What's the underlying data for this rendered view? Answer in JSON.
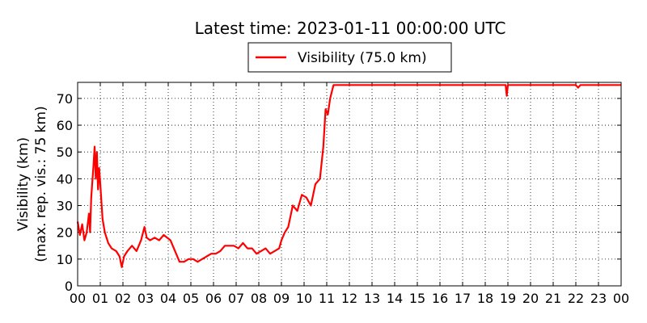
{
  "chart_data": {
    "type": "line",
    "title": "Latest time: 2023-01-11 00:00:00 UTC",
    "ylabel_line1": "Visibility (km)",
    "ylabel_line2": "(max. rep. vis.: 75 km)",
    "xlabel": "",
    "ylim": [
      0,
      76
    ],
    "xlim": [
      0,
      24
    ],
    "yticks": [
      0,
      10,
      20,
      30,
      40,
      50,
      60,
      70
    ],
    "xtick_labels": [
      "00",
      "01",
      "02",
      "03",
      "04",
      "05",
      "06",
      "07",
      "08",
      "09",
      "10",
      "11",
      "12",
      "13",
      "14",
      "15",
      "16",
      "17",
      "18",
      "19",
      "20",
      "21",
      "22",
      "23",
      "00"
    ],
    "grid": true,
    "legend_position": "top-center",
    "series": [
      {
        "name": "Visibility (75.0 km)",
        "color": "#ff0000",
        "points": [
          [
            0.0,
            24
          ],
          [
            0.1,
            19
          ],
          [
            0.2,
            23
          ],
          [
            0.3,
            17
          ],
          [
            0.4,
            20
          ],
          [
            0.5,
            27
          ],
          [
            0.55,
            20
          ],
          [
            0.6,
            33
          ],
          [
            0.7,
            45
          ],
          [
            0.75,
            52
          ],
          [
            0.8,
            40
          ],
          [
            0.85,
            50
          ],
          [
            0.9,
            36
          ],
          [
            0.95,
            44
          ],
          [
            1.0,
            38
          ],
          [
            1.1,
            25
          ],
          [
            1.2,
            20
          ],
          [
            1.35,
            16
          ],
          [
            1.5,
            14
          ],
          [
            1.7,
            13
          ],
          [
            1.85,
            11
          ],
          [
            1.95,
            7
          ],
          [
            2.05,
            11
          ],
          [
            2.2,
            13
          ],
          [
            2.4,
            15
          ],
          [
            2.6,
            13
          ],
          [
            2.8,
            17
          ],
          [
            2.95,
            22
          ],
          [
            3.05,
            18
          ],
          [
            3.2,
            17
          ],
          [
            3.4,
            18
          ],
          [
            3.6,
            17
          ],
          [
            3.8,
            19
          ],
          [
            3.95,
            18
          ],
          [
            4.1,
            17
          ],
          [
            4.3,
            13
          ],
          [
            4.5,
            9
          ],
          [
            4.7,
            9
          ],
          [
            4.9,
            10
          ],
          [
            5.1,
            10
          ],
          [
            5.3,
            9
          ],
          [
            5.5,
            10
          ],
          [
            5.7,
            11
          ],
          [
            5.9,
            12
          ],
          [
            6.1,
            12
          ],
          [
            6.3,
            13
          ],
          [
            6.5,
            15
          ],
          [
            6.7,
            15
          ],
          [
            6.9,
            15
          ],
          [
            7.1,
            14
          ],
          [
            7.3,
            16
          ],
          [
            7.5,
            14
          ],
          [
            7.7,
            14
          ],
          [
            7.9,
            12
          ],
          [
            8.1,
            13
          ],
          [
            8.3,
            14
          ],
          [
            8.5,
            12
          ],
          [
            8.7,
            13
          ],
          [
            8.9,
            14
          ],
          [
            9.0,
            17
          ],
          [
            9.15,
            20
          ],
          [
            9.3,
            22
          ],
          [
            9.5,
            30
          ],
          [
            9.7,
            28
          ],
          [
            9.9,
            34
          ],
          [
            10.1,
            33
          ],
          [
            10.3,
            30
          ],
          [
            10.5,
            38
          ],
          [
            10.7,
            40
          ],
          [
            10.85,
            52
          ],
          [
            10.95,
            66
          ],
          [
            11.05,
            64
          ],
          [
            11.15,
            70
          ],
          [
            11.3,
            75
          ],
          [
            11.5,
            75
          ],
          [
            12.0,
            75
          ],
          [
            13.0,
            75
          ],
          [
            14.0,
            75
          ],
          [
            15.0,
            75
          ],
          [
            16.0,
            75
          ],
          [
            17.0,
            75
          ],
          [
            18.0,
            75
          ],
          [
            18.9,
            75
          ],
          [
            18.95,
            71
          ],
          [
            19.0,
            75
          ],
          [
            20.0,
            75
          ],
          [
            21.0,
            75
          ],
          [
            22.0,
            75
          ],
          [
            22.1,
            74
          ],
          [
            22.2,
            75
          ],
          [
            23.0,
            75
          ],
          [
            24.0,
            75
          ]
        ]
      }
    ]
  }
}
